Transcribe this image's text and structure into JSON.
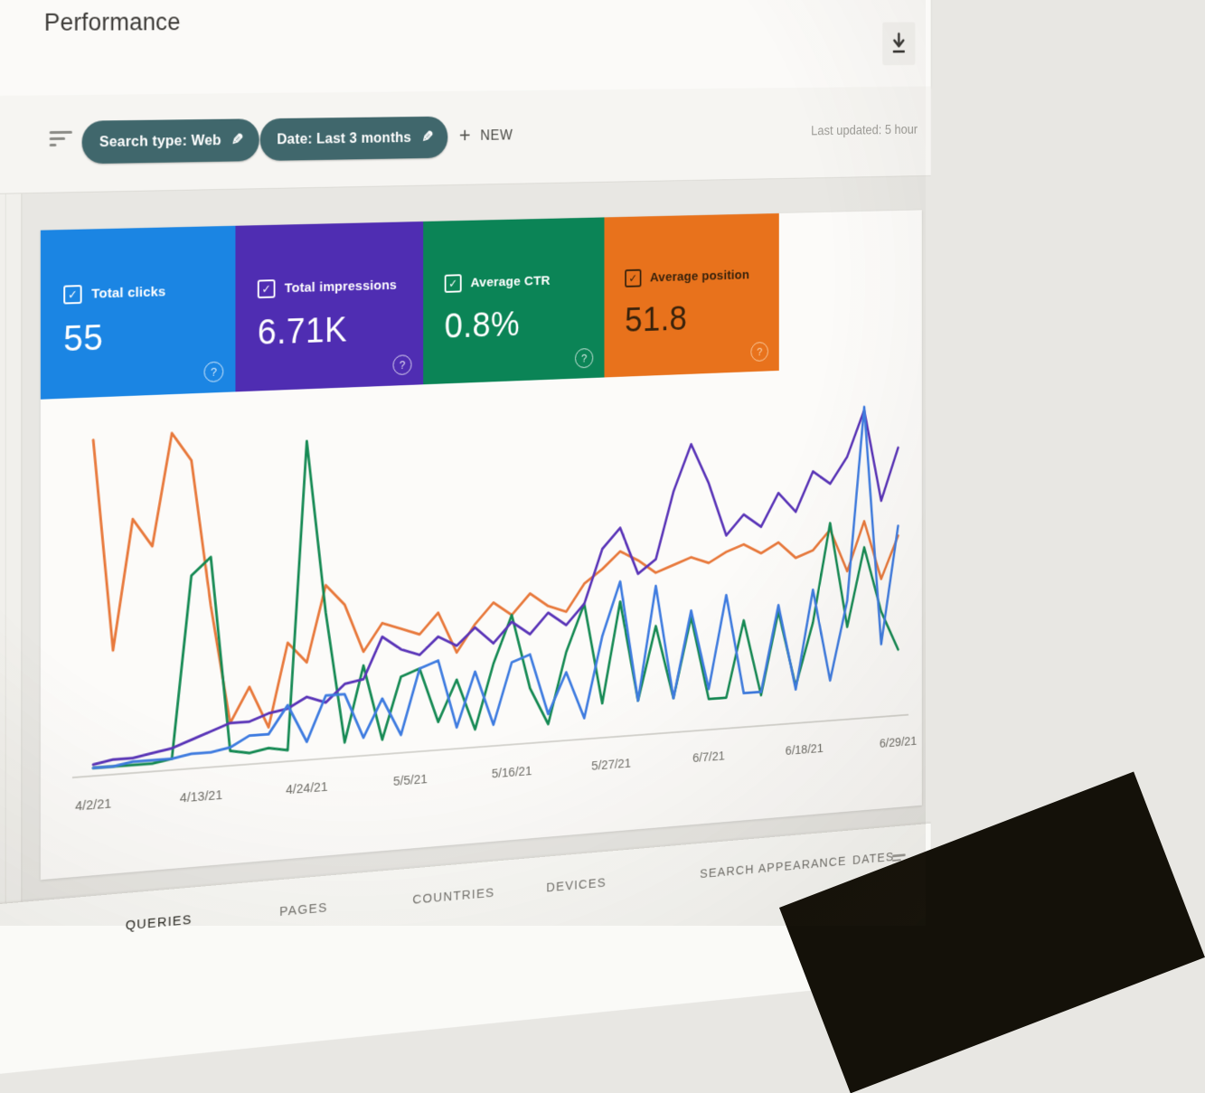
{
  "header": {
    "title": "Performance"
  },
  "toolbar": {
    "chip_color": "#40676c",
    "chips": [
      {
        "label": "Search type: Web"
      },
      {
        "label": "Date: Last 3 months"
      }
    ],
    "new_label": "NEW",
    "last_updated": "Last updated: 5 hour"
  },
  "icons": {
    "check": "✓",
    "pencil": "✎",
    "help": "?",
    "plus": "+"
  },
  "metrics": {
    "cards": [
      {
        "label": "Total clicks",
        "value": "55",
        "color": "#1b85e3",
        "text_color": "#ffffff",
        "help_color": "rgba(255,255,255,0.85)"
      },
      {
        "label": "Total impressions",
        "value": "6.71K",
        "color": "#4f2db2",
        "text_color": "#ffffff",
        "help_color": "rgba(255,255,255,0.85)"
      },
      {
        "label": "Average CTR",
        "value": "0.8%",
        "color": "#0b8456",
        "text_color": "#ffffff",
        "help_color": "rgba(255,255,255,0.85)"
      },
      {
        "label": "Average position",
        "value": "51.8",
        "color": "#e8721c",
        "text_color": "#39220b",
        "help_color": "rgba(255,240,215,0.75)"
      }
    ]
  },
  "chart_data": {
    "type": "line",
    "title": "",
    "xlabel": "",
    "ylabel": "",
    "grid": "off",
    "legend_position": "metric-cards-above",
    "ylim": [
      0,
      100
    ],
    "x_tick_labels": [
      "4/2/21",
      "4/13/21",
      "4/24/21",
      "5/5/21",
      "5/16/21",
      "5/27/21",
      "6/7/21",
      "6/18/21",
      "6/29/21"
    ],
    "x_tick_days": [
      0,
      11,
      22,
      33,
      44,
      55,
      66,
      77,
      88
    ],
    "x_total_days": 88,
    "note": "values are relative heights (0-100) sampled every 2 days, each series normalized to its own scale",
    "series": [
      {
        "name": "Average position",
        "color": "#e8793c",
        "values": [
          95,
          35,
          72,
          64,
          96,
          88,
          46,
          12,
          22,
          10,
          34,
          28,
          50,
          44,
          30,
          38,
          36,
          34,
          40,
          28,
          36,
          42,
          38,
          44,
          40,
          38,
          46,
          50,
          55,
          52,
          48,
          50,
          52,
          50,
          53,
          55,
          52,
          55,
          50,
          52,
          58,
          45,
          60,
          42,
          55
        ]
      },
      {
        "name": "Average CTR",
        "color": "#168a54",
        "values": [
          2,
          2,
          2,
          2,
          3,
          55,
          60,
          4,
          3,
          4,
          3,
          92,
          42,
          4,
          26,
          4,
          22,
          24,
          8,
          20,
          5,
          24,
          38,
          16,
          5,
          26,
          40,
          10,
          40,
          10,
          32,
          10,
          34,
          9,
          9,
          32,
          9,
          34,
          11,
          30,
          60,
          28,
          52,
          32,
          20
        ]
      },
      {
        "name": "Total impressions",
        "color": "#5a35b8",
        "values": [
          3,
          4,
          4,
          5,
          6,
          8,
          10,
          12,
          12,
          14,
          15,
          18,
          16,
          21,
          22,
          34,
          30,
          28,
          33,
          30,
          35,
          30,
          36,
          32,
          38,
          34,
          40,
          56,
          62,
          48,
          52,
          72,
          86,
          74,
          58,
          64,
          60,
          70,
          64,
          76,
          72,
          80,
          94,
          66,
          82
        ]
      },
      {
        "name": "Total clicks",
        "color": "#3f7ce0",
        "values": [
          2,
          2,
          3,
          3,
          3,
          4,
          4,
          5,
          8,
          8,
          16,
          5,
          18,
          18,
          5,
          16,
          5,
          24,
          26,
          6,
          22,
          6,
          24,
          26,
          8,
          20,
          6,
          30,
          46,
          10,
          44,
          10,
          36,
          12,
          40,
          10,
          10,
          36,
          10,
          40,
          12,
          36,
          95,
          22,
          58
        ]
      }
    ]
  },
  "tabs": {
    "items": [
      {
        "label": "QUERIES",
        "active": true
      },
      {
        "label": "PAGES",
        "active": false
      },
      {
        "label": "COUNTRIES",
        "active": false
      },
      {
        "label": "DEVICES",
        "active": false
      },
      {
        "label": "SEARCH APPEARANCE",
        "active": false
      },
      {
        "label": "DATES",
        "active": false
      }
    ]
  }
}
